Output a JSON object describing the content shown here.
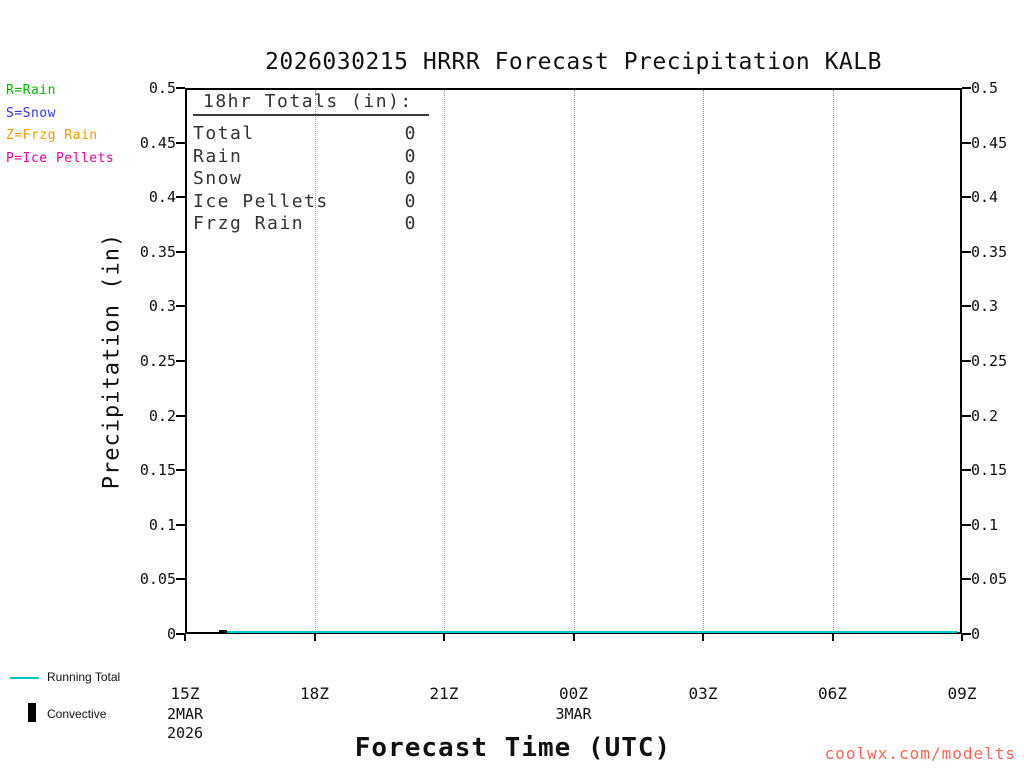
{
  "title": "2026030215 HRRR Forecast Precipitation KALB",
  "legend": {
    "items": [
      {
        "id": "rain",
        "label": "R=Rain",
        "color": "#00bb00"
      },
      {
        "id": "snow",
        "label": "S=Snow",
        "color": "#3333ff"
      },
      {
        "id": "frzg-rain",
        "label": "Z=Frzg Rain",
        "color": "#ff9900"
      },
      {
        "id": "ice-pellets",
        "label": "P=Ice Pellets",
        "color": "#ee00aa"
      }
    ]
  },
  "totals_box": {
    "heading": "18hr Totals (in):",
    "rows": [
      {
        "label": "Total",
        "value": "0"
      },
      {
        "label": "Rain",
        "value": "0"
      },
      {
        "label": "Snow",
        "value": "0"
      },
      {
        "label": "Ice Pellets",
        "value": "0"
      },
      {
        "label": "Frzg Rain",
        "value": "0"
      }
    ]
  },
  "y_axis": {
    "label": "Precipitation (in)"
  },
  "x_axis": {
    "label": "Forecast Time (UTC)",
    "date_labels": [
      {
        "tick_index": 0,
        "lines": [
          "2MAR",
          "2026"
        ]
      },
      {
        "tick_index": 3,
        "lines": [
          "3MAR"
        ]
      }
    ]
  },
  "bottom_legend": [
    {
      "label": "Running Total",
      "marker": "line",
      "color": "#00c8c8"
    },
    {
      "label": "Convective",
      "marker": "bar",
      "color": "#000000"
    }
  ],
  "watermark": {
    "text": "coolwx.com/modelts",
    "color": "#ff6655"
  },
  "chart_data": {
    "type": "line",
    "title": "2026030215 HRRR Forecast Precipitation KALB",
    "xlabel": "Forecast Time (UTC)",
    "ylabel": "Precipitation (in)",
    "x_ticks": [
      "15Z",
      "18Z",
      "21Z",
      "00Z",
      "03Z",
      "06Z",
      "09Z"
    ],
    "y_ticks": [
      "0.5",
      "0.45",
      "0.4",
      "0.35",
      "0.3",
      "0.25",
      "0.2",
      "0.15",
      "0.1",
      "0.05",
      "0"
    ],
    "ylim": [
      0,
      0.5
    ],
    "grid": "vertical-dotted-interior-ticks-only",
    "legend_position": "bottom-left",
    "series": [
      {
        "name": "Running Total",
        "color": "#00c8c8",
        "x": [
          "15Z",
          "18Z",
          "21Z",
          "00Z",
          "03Z",
          "06Z",
          "09Z"
        ],
        "values": [
          0,
          0,
          0,
          0,
          0,
          0,
          0
        ]
      },
      {
        "name": "Convective",
        "color": "#000000",
        "x": [
          "15Z",
          "18Z",
          "21Z",
          "00Z",
          "03Z",
          "06Z",
          "09Z"
        ],
        "values": [
          0,
          0,
          0,
          0,
          0,
          0,
          0
        ]
      }
    ],
    "totals_18hr_in": {
      "total": 0,
      "rain": 0,
      "snow": 0,
      "ice_pellets": 0,
      "frzg_rain": 0
    }
  }
}
